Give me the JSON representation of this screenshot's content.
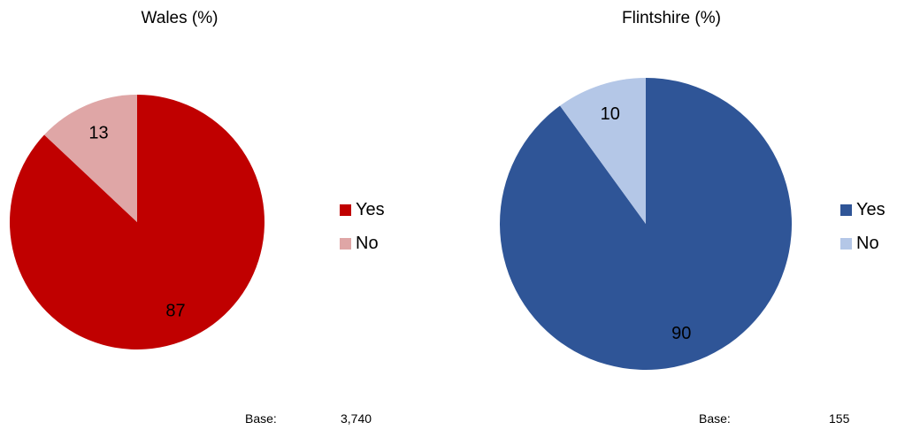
{
  "chart_data": [
    {
      "type": "pie",
      "title": "Wales (%)",
      "series": [
        {
          "label": "Yes",
          "value": 87,
          "color": "#C00000"
        },
        {
          "label": "No",
          "value": 13,
          "color": "#DFA6A6"
        }
      ],
      "legend_position": "right",
      "base_label": "Base:",
      "base_value": "3,740"
    },
    {
      "type": "pie",
      "title": "Flintshire (%)",
      "series": [
        {
          "label": "Yes",
          "value": 90,
          "color": "#2F5597"
        },
        {
          "label": "No",
          "value": 10,
          "color": "#B4C7E7"
        }
      ],
      "legend_position": "right",
      "base_label": "Base:",
      "base_value": "155"
    }
  ]
}
